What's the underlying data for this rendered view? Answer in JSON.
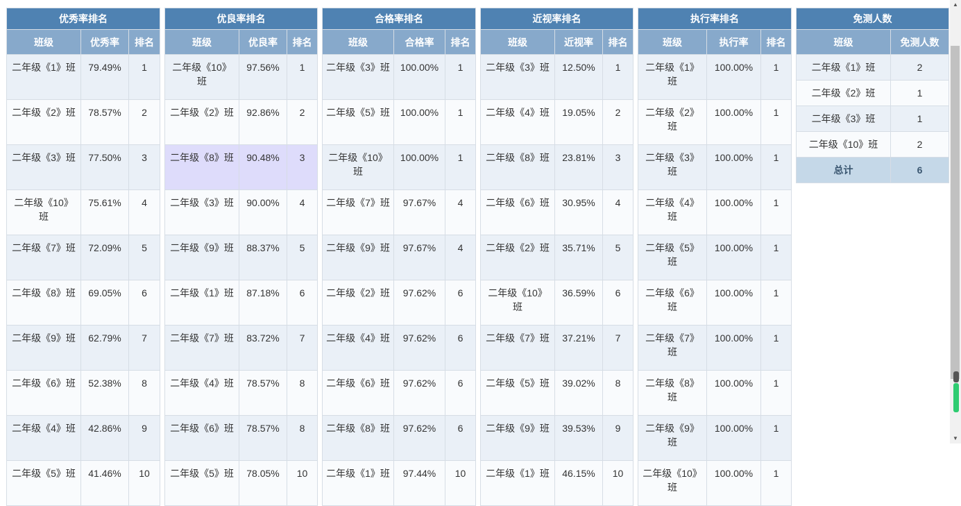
{
  "panels": [
    {
      "title": "优秀率排名",
      "headers": [
        "班级",
        "优秀率",
        "排名"
      ],
      "rows": [
        [
          "二年级《1》班",
          "79.49%",
          "1"
        ],
        [
          "二年级《2》班",
          "78.57%",
          "2"
        ],
        [
          "二年级《3》班",
          "77.50%",
          "3"
        ],
        [
          "二年级《10》班",
          "75.61%",
          "4"
        ],
        [
          "二年级《7》班",
          "72.09%",
          "5"
        ],
        [
          "二年级《8》班",
          "69.05%",
          "6"
        ],
        [
          "二年级《9》班",
          "62.79%",
          "7"
        ],
        [
          "二年级《6》班",
          "52.38%",
          "8"
        ],
        [
          "二年级《4》班",
          "42.86%",
          "9"
        ],
        [
          "二年级《5》班",
          "41.46%",
          "10"
        ]
      ]
    },
    {
      "title": "优良率排名",
      "headers": [
        "班级",
        "优良率",
        "排名"
      ],
      "rows": [
        [
          "二年级《10》班",
          "97.56%",
          "1"
        ],
        [
          "二年级《2》班",
          "92.86%",
          "2"
        ],
        [
          "二年级《8》班",
          "90.48%",
          "3"
        ],
        [
          "二年级《3》班",
          "90.00%",
          "4"
        ],
        [
          "二年级《9》班",
          "88.37%",
          "5"
        ],
        [
          "二年级《1》班",
          "87.18%",
          "6"
        ],
        [
          "二年级《7》班",
          "83.72%",
          "7"
        ],
        [
          "二年级《4》班",
          "78.57%",
          "8"
        ],
        [
          "二年级《6》班",
          "78.57%",
          "8"
        ],
        [
          "二年级《5》班",
          "78.05%",
          "10"
        ]
      ]
    },
    {
      "title": "合格率排名",
      "headers": [
        "班级",
        "合格率",
        "排名"
      ],
      "rows": [
        [
          "二年级《3》班",
          "100.00%",
          "1"
        ],
        [
          "二年级《5》班",
          "100.00%",
          "1"
        ],
        [
          "二年级《10》班",
          "100.00%",
          "1"
        ],
        [
          "二年级《7》班",
          "97.67%",
          "4"
        ],
        [
          "二年级《9》班",
          "97.67%",
          "4"
        ],
        [
          "二年级《2》班",
          "97.62%",
          "6"
        ],
        [
          "二年级《4》班",
          "97.62%",
          "6"
        ],
        [
          "二年级《6》班",
          "97.62%",
          "6"
        ],
        [
          "二年级《8》班",
          "97.62%",
          "6"
        ],
        [
          "二年级《1》班",
          "97.44%",
          "10"
        ]
      ]
    },
    {
      "title": "近视率排名",
      "headers": [
        "班级",
        "近视率",
        "排名"
      ],
      "rows": [
        [
          "二年级《3》班",
          "12.50%",
          "1"
        ],
        [
          "二年级《4》班",
          "19.05%",
          "2"
        ],
        [
          "二年级《8》班",
          "23.81%",
          "3"
        ],
        [
          "二年级《6》班",
          "30.95%",
          "4"
        ],
        [
          "二年级《2》班",
          "35.71%",
          "5"
        ],
        [
          "二年级《10》班",
          "36.59%",
          "6"
        ],
        [
          "二年级《7》班",
          "37.21%",
          "7"
        ],
        [
          "二年级《5》班",
          "39.02%",
          "8"
        ],
        [
          "二年级《9》班",
          "39.53%",
          "9"
        ],
        [
          "二年级《1》班",
          "46.15%",
          "10"
        ]
      ]
    },
    {
      "title": "执行率排名",
      "headers": [
        "班级",
        "执行率",
        "排名"
      ],
      "rows": [
        [
          "二年级《1》班",
          "100.00%",
          "1"
        ],
        [
          "二年级《2》班",
          "100.00%",
          "1"
        ],
        [
          "二年级《3》班",
          "100.00%",
          "1"
        ],
        [
          "二年级《4》班",
          "100.00%",
          "1"
        ],
        [
          "二年级《5》班",
          "100.00%",
          "1"
        ],
        [
          "二年级《6》班",
          "100.00%",
          "1"
        ],
        [
          "二年级《7》班",
          "100.00%",
          "1"
        ],
        [
          "二年级《8》班",
          "100.00%",
          "1"
        ],
        [
          "二年级《9》班",
          "100.00%",
          "1"
        ],
        [
          "二年级《10》班",
          "100.00%",
          "1"
        ]
      ]
    }
  ],
  "exempt": {
    "title": "免测人数",
    "headers": [
      "班级",
      "免测人数"
    ],
    "rows": [
      [
        "二年级《1》班",
        "2"
      ],
      [
        "二年级《2》班",
        "1"
      ],
      [
        "二年级《3》班",
        "1"
      ],
      [
        "二年级《10》班",
        "2"
      ]
    ],
    "total_label": "总计",
    "total_value": "6"
  },
  "colors": {
    "title_bg": "#4f82b2",
    "header_bg": "#87a9cb",
    "row_odd": "#eaf0f7",
    "row_even": "#f9fbfd",
    "row_highlight": "#dedcfb",
    "total_bg": "#c5d8e8"
  },
  "highlight": {
    "panel": 1,
    "row": 2
  }
}
